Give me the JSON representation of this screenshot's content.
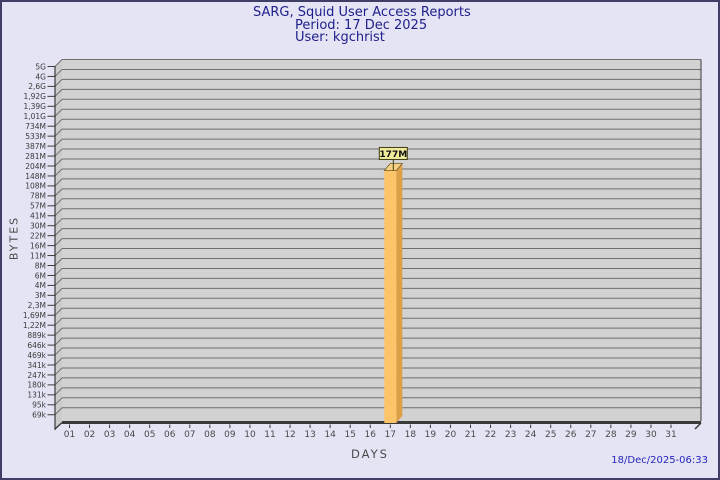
{
  "header": {
    "title": "SARG, Squid User Access Reports",
    "period": "Period: 17 Dec 2025",
    "user": "User: kgchrist"
  },
  "footer": {
    "generated": "18/Dec/2025-06:33"
  },
  "chart_data": {
    "type": "bar",
    "title": "SARG, Squid User Access Reports - Period: 17 Dec 2025 - User: kgchrist",
    "xlabel": "DAYS",
    "ylabel": "BYTES",
    "y_scale": "log",
    "x_categories": [
      "01",
      "02",
      "03",
      "04",
      "05",
      "06",
      "07",
      "08",
      "09",
      "10",
      "11",
      "12",
      "13",
      "14",
      "15",
      "16",
      "17",
      "18",
      "19",
      "20",
      "21",
      "22",
      "23",
      "24",
      "25",
      "26",
      "27",
      "28",
      "29",
      "30",
      "31"
    ],
    "y_tick_labels_top_to_bottom": [
      "5G",
      "4G",
      "2,6G",
      "1,92G",
      "1,39G",
      "1,01G",
      "734M",
      "533M",
      "387M",
      "281M",
      "204M",
      "148M",
      "108M",
      "78M",
      "57M",
      "41M",
      "30M",
      "22M",
      "16M",
      "11M",
      "8M",
      "6M",
      "4M",
      "3M",
      "2,3M",
      "1,69M",
      "1,22M",
      "889k",
      "646k",
      "469k",
      "341k",
      "247k",
      "180k",
      "131k",
      "95k",
      "69k"
    ],
    "bars": [
      {
        "category": "17",
        "value": "177M",
        "label": "177M"
      }
    ],
    "legend": null,
    "grid": "horizontal",
    "colors": {
      "page_bg": "#E4E4F4",
      "page_border": "#3E3E66",
      "title_text": "#20208C",
      "plot_bg": "#D2D2D2",
      "wall_bg": "#CBCBCB",
      "grid_line": "#6E6E6E",
      "axis_line": "#3A3A3A",
      "y_tick_text": "#3A3A3A",
      "x_tick_text": "#4A4A4A",
      "axis_title_text": "#4A4A4A",
      "bar_front": "#FDC469",
      "bar_side": "#DCA046",
      "bar_top": "#F6D183",
      "bar_top_edge": "#6B5B26",
      "value_label_bg": "#F0EB9C",
      "value_label_border": "#3C3C10",
      "value_label_text": "#111111",
      "timestamp_text": "#2626BF"
    }
  }
}
